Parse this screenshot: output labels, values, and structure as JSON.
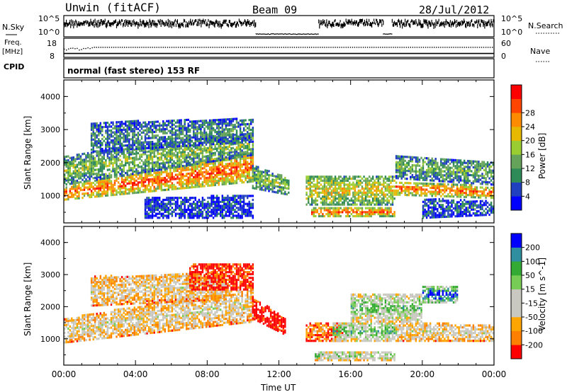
{
  "header": {
    "station": "Unwin (fitACF)",
    "beam": "Beam 09",
    "date": "28/Jul/2012"
  },
  "info_panel": {
    "nsky_label": "N.Sky",
    "nsky_ticks": [
      "10^5",
      "10^0"
    ],
    "nsearch_label": "N.Search",
    "freq_label": "Freq.",
    "freq_unit": "[MHz]",
    "freq_ticks": [
      "18",
      "8"
    ],
    "nave_label": "Nave",
    "nave_ticks": [
      "60",
      "0"
    ],
    "cpid_label": "CPID",
    "cpid_text": "normal (fast stereo) 153 RF",
    "noise_segments": [
      {
        "t0": 0.0,
        "t1": 10.7,
        "level": 0.72
      },
      {
        "t0": 10.7,
        "t1": 14.2,
        "level": 0.15
      },
      {
        "t0": 14.2,
        "t1": 17.8,
        "level": 0.72
      },
      {
        "t0": 17.8,
        "t1": 18.3,
        "level": 0.15
      },
      {
        "t0": 18.3,
        "t1": 24.0,
        "level": 0.72
      }
    ],
    "freq_dotted_level": 0.55,
    "nave_solid_level": 0.2
  },
  "colors": {
    "power": [
      "#0000ff",
      "#2040c0",
      "#2e8b57",
      "#66a35a",
      "#9acd32",
      "#e6b800",
      "#ff8c00",
      "#ff4500",
      "#ff0000"
    ],
    "velocity": [
      "#ff0000",
      "#ff7f00",
      "#ffa500",
      "#c8c8c0",
      "#c8c8c0",
      "#77cc55",
      "#33aa33",
      "#2f8fa0",
      "#0000ff"
    ]
  },
  "chart_data": [
    {
      "type": "heatmap",
      "name": "power",
      "xlabel": "",
      "ylabel": "Slant Range [km]",
      "xlim": [
        0,
        24
      ],
      "ylim": [
        180,
        4500
      ],
      "yticks": [
        "1000",
        "2000",
        "3000",
        "4000"
      ],
      "yticks_values": [
        1000,
        2000,
        3000,
        4000
      ],
      "colorbar": {
        "label": "Power [dB]",
        "ticks": [
          "4",
          "8",
          "12",
          "16",
          "20",
          "24",
          "28"
        ],
        "range": [
          0,
          32
        ]
      },
      "bands": [
        {
          "t0": 0.0,
          "t1": 10.5,
          "r0": 850,
          "r1": 1250,
          "r0_end": 1400,
          "r1_end": 2300,
          "level": 0.85
        },
        {
          "t0": 0.0,
          "t1": 10.5,
          "r0": 1300,
          "r1": 2200,
          "r0_end": 2200,
          "r1_end": 2900,
          "level": 0.45
        },
        {
          "t0": 1.5,
          "t1": 10.5,
          "r0": 2300,
          "r1": 3200,
          "r0_end": 2600,
          "r1_end": 3300,
          "level": 0.3
        },
        {
          "t0": 4.5,
          "t1": 10.5,
          "r0": 300,
          "r1": 900,
          "r0_end": 300,
          "r1_end": 1000,
          "level": 0.15
        },
        {
          "t0": 10.5,
          "t1": 12.5,
          "r0": 1200,
          "r1": 1900,
          "r0_end": 1000,
          "r1_end": 1500,
          "level": 0.45
        },
        {
          "t0": 13.8,
          "t1": 18.5,
          "r0": 350,
          "r1": 600,
          "r0_end": 350,
          "r1_end": 600,
          "level": 0.85
        },
        {
          "t0": 13.5,
          "t1": 18.5,
          "r0": 700,
          "r1": 1600,
          "r0_end": 700,
          "r1_end": 1600,
          "level": 0.6
        },
        {
          "t0": 18.5,
          "t1": 24.0,
          "r0": 1000,
          "r1": 1400,
          "r0_end": 900,
          "r1_end": 1250,
          "level": 0.8
        },
        {
          "t0": 18.5,
          "t1": 24.0,
          "r0": 1500,
          "r1": 2200,
          "r0_end": 1300,
          "r1_end": 2000,
          "level": 0.4
        },
        {
          "t0": 20.0,
          "t1": 24.0,
          "r0": 300,
          "r1": 900,
          "r0_end": 400,
          "r1_end": 800,
          "level": 0.2
        }
      ]
    },
    {
      "type": "heatmap",
      "name": "velocity",
      "xlabel": "Time UT",
      "ylabel": "Slant Range [km]",
      "xlim": [
        0,
        24
      ],
      "ylim": [
        180,
        4500
      ],
      "xticks": [
        "00:00",
        "04:00",
        "08:00",
        "12:00",
        "16:00",
        "20:00",
        "00:00"
      ],
      "xticks_values": [
        0,
        4,
        8,
        12,
        16,
        20,
        24
      ],
      "yticks": [
        "1000",
        "2000",
        "3000",
        "4000"
      ],
      "yticks_values": [
        1000,
        2000,
        3000,
        4000
      ],
      "colorbar": {
        "label": "Velocity [m s^-1]",
        "ticks": [
          "200",
          "100",
          "50",
          "15",
          "-15",
          "-50",
          "-100",
          "-200"
        ]
      },
      "bands": [
        {
          "t0": 0.0,
          "t1": 10.5,
          "r0": 850,
          "r1": 1600,
          "r0_end": 1500,
          "r1_end": 2600,
          "level": 0.45
        },
        {
          "t0": 1.5,
          "t1": 9.0,
          "r0": 2000,
          "r1": 2900,
          "r0_end": 2200,
          "r1_end": 3100,
          "level": 0.42
        },
        {
          "t0": 7.0,
          "t1": 10.5,
          "r0": 2500,
          "r1": 3300,
          "r0_end": 2500,
          "r1_end": 3300,
          "level": 0.05
        },
        {
          "t0": 10.5,
          "t1": 12.3,
          "r0": 1600,
          "r1": 2300,
          "r0_end": 1100,
          "r1_end": 1600,
          "level": 0.0
        },
        {
          "t0": 13.5,
          "t1": 15.5,
          "r0": 900,
          "r1": 1500,
          "r0_end": 900,
          "r1_end": 1500,
          "level": 0.2
        },
        {
          "t0": 15.0,
          "t1": 18.5,
          "r0": 900,
          "r1": 1500,
          "r0_end": 900,
          "r1_end": 1500,
          "level": 0.7
        },
        {
          "t0": 14.0,
          "t1": 18.5,
          "r0": 300,
          "r1": 600,
          "r0_end": 300,
          "r1_end": 600,
          "level": 0.6
        },
        {
          "t0": 18.5,
          "t1": 24.0,
          "r0": 900,
          "r1": 1500,
          "r0_end": 900,
          "r1_end": 1400,
          "level": 0.45
        },
        {
          "t0": 20.0,
          "t1": 22.0,
          "r0": 2100,
          "r1": 2600,
          "r0_end": 2100,
          "r1_end": 2600,
          "level": 1.0
        },
        {
          "t0": 16.0,
          "t1": 20.0,
          "r0": 1500,
          "r1": 2400,
          "r0_end": 1500,
          "r1_end": 2400,
          "level": 0.65
        }
      ]
    }
  ]
}
